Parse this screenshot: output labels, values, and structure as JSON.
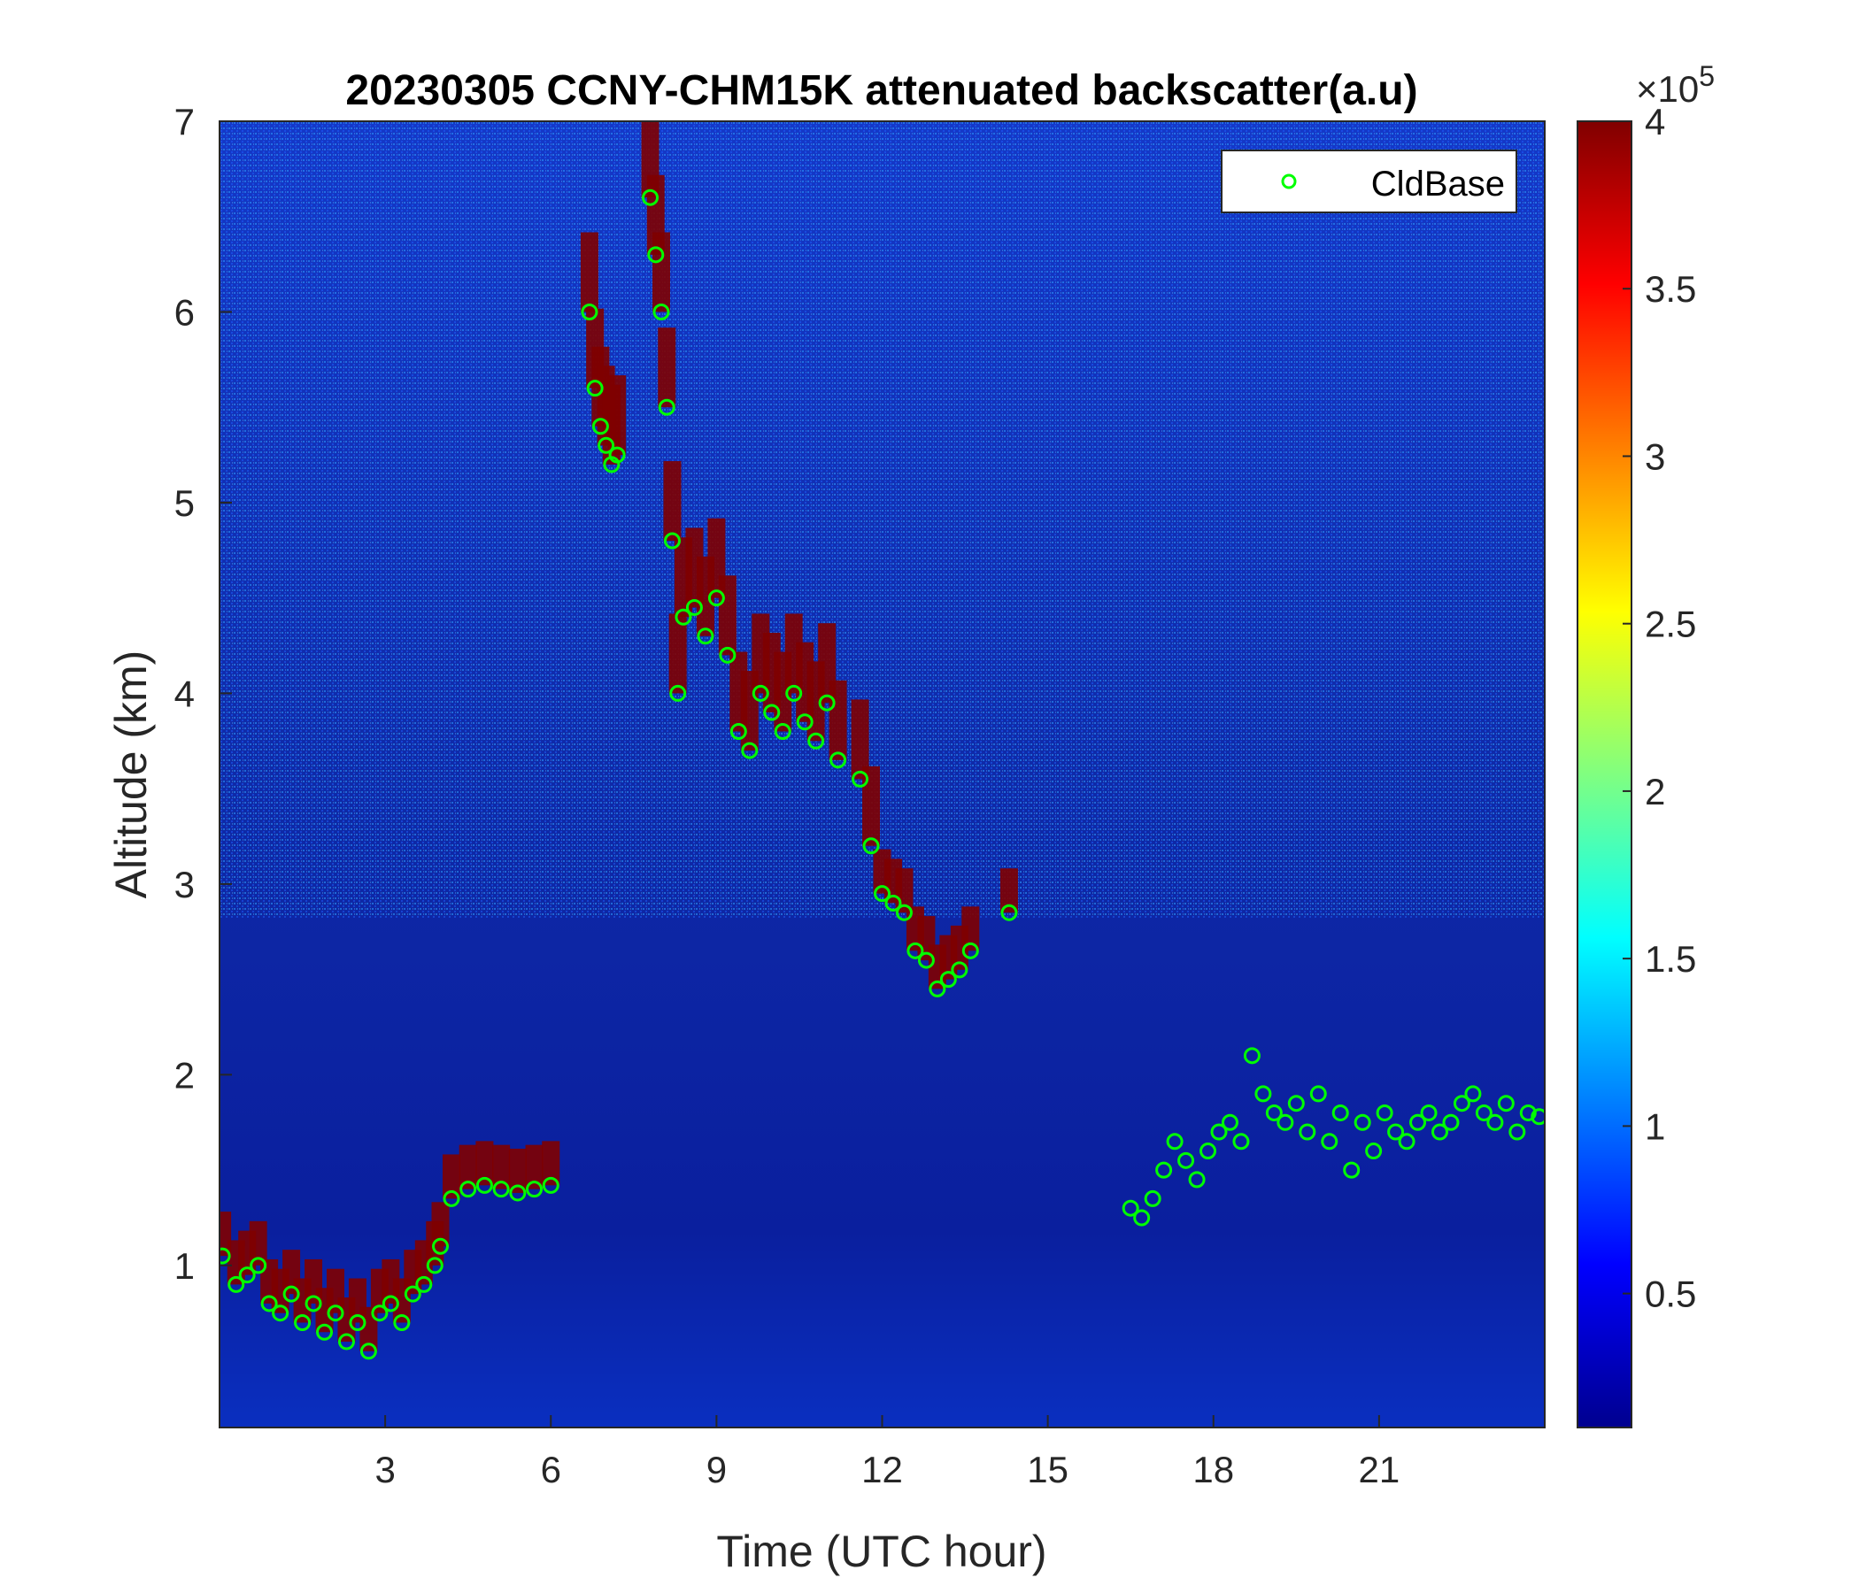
{
  "chart_data": {
    "type": "heatmap",
    "title": "20230305 CCNY-CHM15K attenuated backscatter(a.u)",
    "xlabel": "Time (UTC hour)",
    "ylabel": "Altitude (km)",
    "xlim": [
      0,
      24
    ],
    "ylim": [
      0.15,
      7
    ],
    "xticks": [
      3,
      6,
      9,
      12,
      15,
      18,
      21
    ],
    "yticks": [
      1,
      2,
      3,
      4,
      5,
      6,
      7
    ],
    "colorbar": {
      "colormap": "jet",
      "lim": [
        10000,
        400000
      ],
      "ticks": [
        0.5,
        1,
        1.5,
        2,
        2.5,
        3,
        3.5,
        4
      ],
      "exponent_label": "×10",
      "exponent": "5"
    },
    "legend": {
      "location": "top-right",
      "entries": [
        "CldBase"
      ]
    },
    "colors": {
      "cldbase_marker": "#00ff00",
      "background_low": "#0a1f9e",
      "cloud_high": "#800000"
    },
    "series": [
      {
        "name": "CldBase",
        "marker": "circle",
        "x": [
          0.05,
          0.3,
          0.5,
          0.7,
          0.9,
          1.1,
          1.3,
          1.5,
          1.7,
          1.9,
          2.1,
          2.3,
          2.5,
          2.7,
          2.9,
          3.1,
          3.3,
          3.5,
          3.7,
          3.9,
          4.0,
          4.2,
          4.5,
          4.8,
          5.1,
          5.4,
          5.7,
          6.0,
          6.7,
          6.8,
          6.9,
          7.0,
          7.1,
          7.2,
          7.8,
          7.9,
          8.0,
          8.1,
          8.2,
          8.3,
          8.4,
          8.6,
          8.8,
          9.0,
          9.2,
          9.4,
          9.6,
          9.8,
          10.0,
          10.2,
          10.4,
          10.6,
          10.8,
          11.0,
          11.2,
          11.6,
          11.8,
          12.0,
          12.2,
          12.4,
          12.6,
          12.8,
          13.0,
          13.2,
          13.4,
          13.6,
          14.3,
          16.5,
          16.7,
          16.9,
          17.1,
          17.3,
          17.5,
          17.7,
          17.9,
          18.1,
          18.3,
          18.5,
          18.7,
          18.9,
          19.1,
          19.3,
          19.5,
          19.7,
          19.9,
          20.1,
          20.3,
          20.5,
          20.7,
          20.9,
          21.1,
          21.3,
          21.5,
          21.7,
          21.9,
          22.1,
          22.3,
          22.5,
          22.7,
          22.9,
          23.1,
          23.3,
          23.5,
          23.7,
          23.9
        ],
        "y": [
          1.05,
          0.9,
          0.95,
          1.0,
          0.8,
          0.75,
          0.85,
          0.7,
          0.8,
          0.65,
          0.75,
          0.6,
          0.7,
          0.55,
          0.75,
          0.8,
          0.7,
          0.85,
          0.9,
          1.0,
          1.1,
          1.35,
          1.4,
          1.42,
          1.4,
          1.38,
          1.4,
          1.42,
          6.0,
          5.6,
          5.4,
          5.3,
          5.2,
          5.25,
          6.6,
          6.3,
          6.0,
          5.5,
          4.8,
          4.0,
          4.4,
          4.45,
          4.3,
          4.5,
          4.2,
          3.8,
          3.7,
          4.0,
          3.9,
          3.8,
          4.0,
          3.85,
          3.75,
          3.95,
          3.65,
          3.55,
          3.2,
          2.95,
          2.9,
          2.85,
          2.65,
          2.6,
          2.45,
          2.5,
          2.55,
          2.65,
          2.85,
          1.3,
          1.25,
          1.35,
          1.5,
          1.65,
          1.55,
          1.45,
          1.6,
          1.7,
          1.75,
          1.65,
          2.1,
          1.9,
          1.8,
          1.75,
          1.85,
          1.7,
          1.9,
          1.65,
          1.8,
          1.5,
          1.75,
          1.6,
          1.8,
          1.7,
          1.65,
          1.75,
          1.8,
          1.7,
          1.75,
          1.85,
          1.9,
          1.8,
          1.75,
          1.85,
          1.7,
          1.8,
          1.78
        ]
      }
    ]
  }
}
